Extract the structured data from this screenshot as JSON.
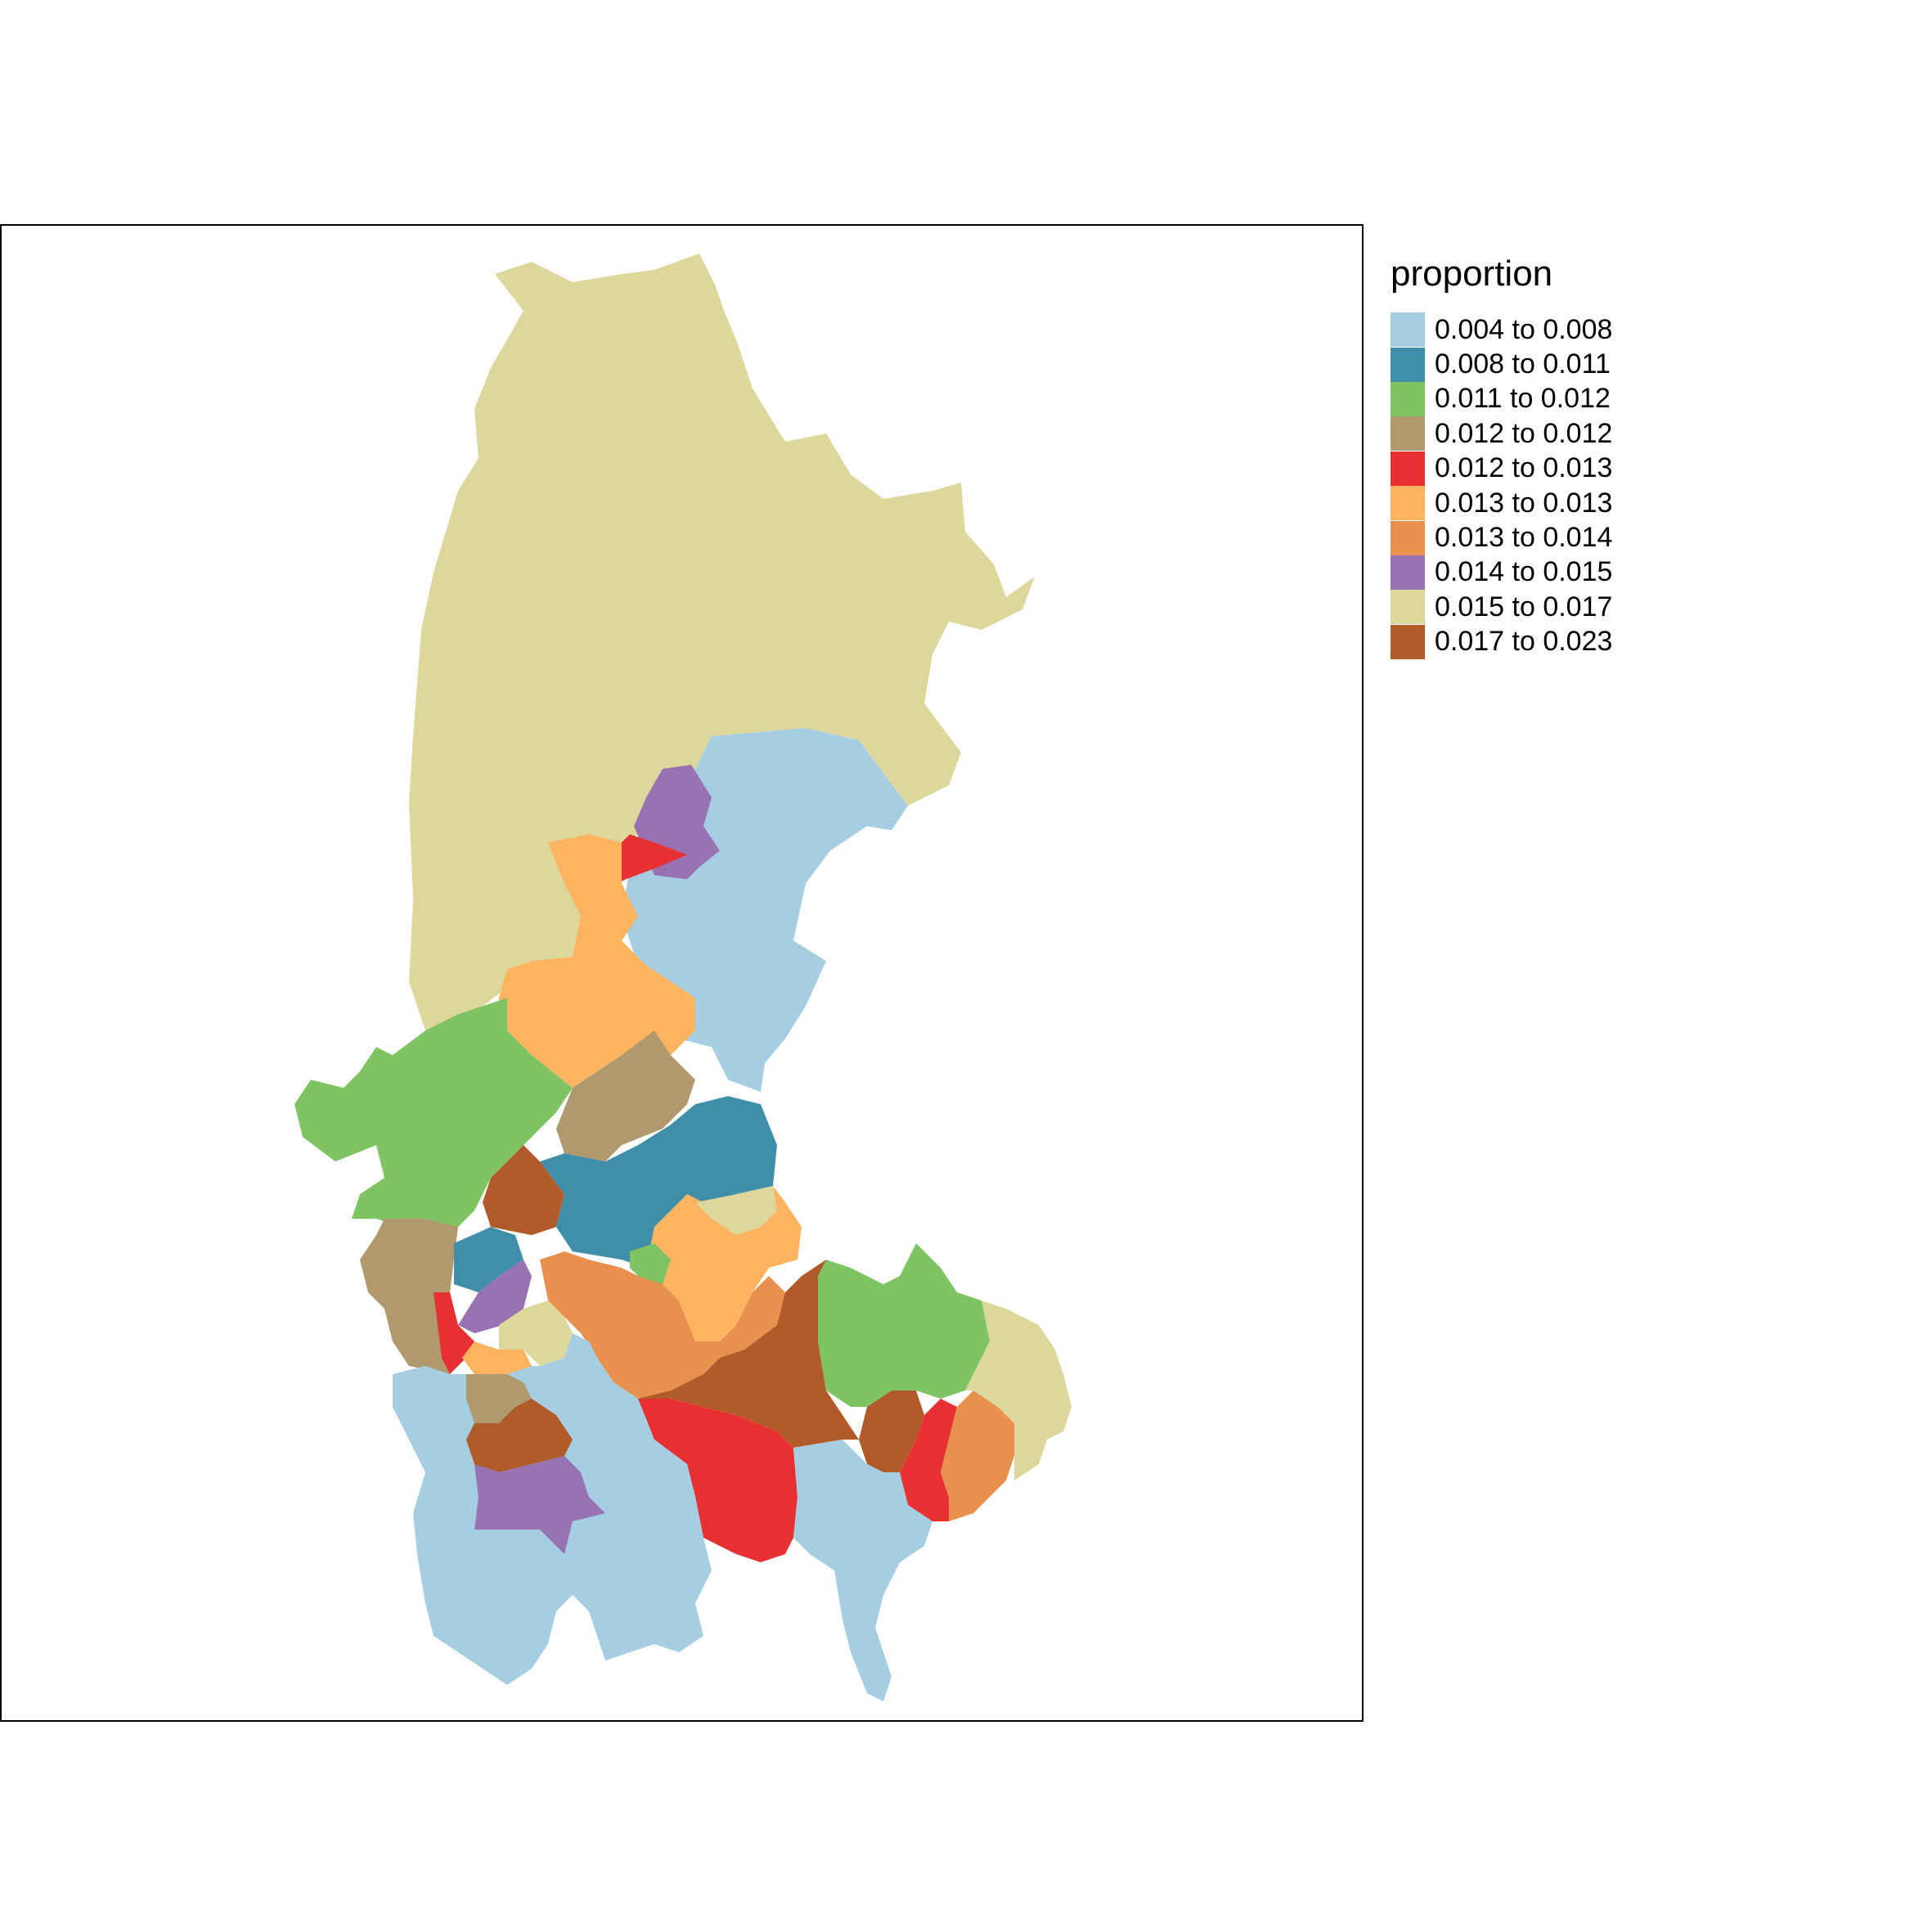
{
  "legend": {
    "title": "proportion",
    "classes": [
      {
        "label": "0.004 to 0.008",
        "color": "#a6cee3"
      },
      {
        "label": "0.008 to 0.011",
        "color": "#3f8fab"
      },
      {
        "label": "0.011 to 0.012",
        "color": "#7fc463"
      },
      {
        "label": "0.012 to 0.012",
        "color": "#b09a6d"
      },
      {
        "label": "0.012 to 0.013",
        "color": "#e73032"
      },
      {
        "label": "0.013 to 0.013",
        "color": "#fdb360"
      },
      {
        "label": "0.013 to 0.014",
        "color": "#e8914f"
      },
      {
        "label": "0.014 to 0.015",
        "color": "#9872b2"
      },
      {
        "label": "0.015 to 0.017",
        "color": "#ded79b"
      },
      {
        "label": "0.017 to 0.023",
        "color": "#b15a2a"
      }
    ]
  }
}
